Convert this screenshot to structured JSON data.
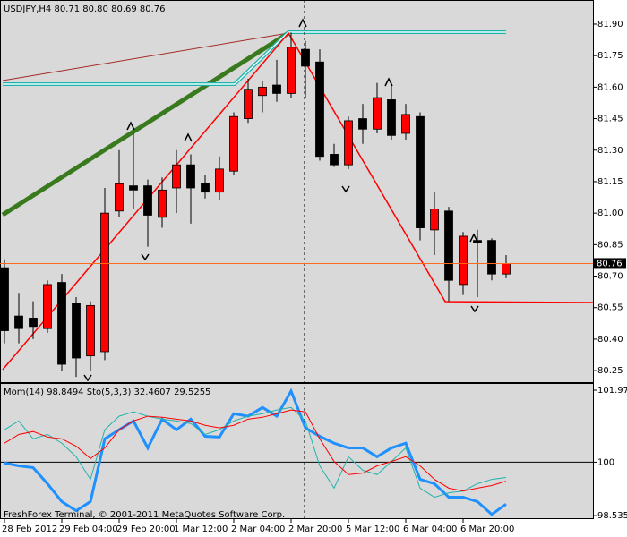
{
  "chart_data": [
    {
      "type": "candlestick",
      "title": "USDJPY,H4  80.71 80.80 80.69 80.76",
      "copyright": "FreshForex Terminal, © 2001-2011 MetaQuotes Software Corp.",
      "categories": [
        "28 Feb 2012",
        null,
        null,
        null,
        "29 Feb 04:00",
        null,
        null,
        null,
        "29 Feb 20:00",
        null,
        null,
        null,
        "1 Mar 12:00",
        null,
        null,
        null,
        "2 Mar 04:00",
        null,
        null,
        null,
        "2 Mar 20:00",
        null,
        null,
        null,
        "5 Mar 12:00",
        null,
        null,
        null,
        "6 Mar 04:00",
        null,
        null,
        null,
        "6 Mar 20:00",
        null,
        null,
        null
      ],
      "open": [
        80.74,
        80.51,
        80.5,
        80.45,
        80.67,
        80.57,
        80.32,
        80.34,
        81.01,
        81.13,
        81.13,
        80.98,
        81.12,
        81.23,
        81.14,
        81.1,
        81.2,
        81.45,
        81.56,
        81.61,
        81.57,
        81.78,
        81.72,
        81.28,
        81.23,
        81.45,
        81.4,
        81.54,
        81.38,
        81.46,
        80.92,
        81.01,
        80.66,
        80.87,
        80.87,
        80.71
      ],
      "high": [
        80.78,
        80.62,
        80.58,
        80.68,
        80.71,
        80.6,
        80.58,
        81.12,
        81.3,
        81.38,
        81.16,
        81.17,
        81.3,
        81.28,
        81.18,
        81.27,
        81.48,
        81.64,
        81.63,
        81.73,
        81.86,
        81.82,
        81.78,
        81.33,
        81.46,
        81.52,
        81.62,
        81.62,
        81.52,
        81.48,
        81.1,
        81.03,
        80.91,
        80.92,
        80.88,
        80.8
      ],
      "low": [
        80.38,
        80.38,
        80.4,
        80.43,
        80.25,
        80.22,
        80.25,
        80.3,
        80.98,
        81.02,
        80.84,
        80.93,
        81.0,
        80.95,
        81.07,
        81.06,
        81.18,
        81.43,
        81.48,
        81.53,
        81.55,
        81.55,
        81.25,
        81.22,
        81.21,
        81.33,
        81.38,
        81.35,
        81.35,
        80.87,
        80.8,
        80.58,
        80.61,
        80.6,
        80.68,
        80.69
      ],
      "close": [
        80.44,
        80.45,
        80.46,
        80.66,
        80.28,
        80.31,
        80.56,
        81.0,
        81.14,
        81.11,
        80.99,
        81.11,
        81.23,
        81.12,
        81.1,
        81.21,
        81.46,
        81.59,
        81.6,
        81.57,
        81.79,
        81.7,
        81.27,
        81.23,
        81.44,
        81.4,
        81.55,
        81.37,
        81.47,
        80.93,
        81.02,
        80.68,
        80.89,
        80.86,
        80.71,
        80.76
      ],
      "up_color": "#ff0000",
      "down_color": "#000000",
      "price_line_color": "#ff6a1a",
      "ylim": [
        80.195,
        82.015
      ],
      "yticks": [
        {
          "value": 81.9,
          "label": "81.90"
        },
        81.75,
        {
          "value": 81.6,
          "label": "81.60"
        },
        81.45,
        {
          "value": 81.3,
          "label": "81.30"
        },
        81.15,
        {
          "value": 81.0,
          "label": "81.00"
        },
        80.85,
        {
          "value": 80.7,
          "label": "80.70"
        },
        80.55,
        {
          "value": 80.4,
          "label": "80.40"
        },
        80.25
      ]
    },
    {
      "type": "line",
      "title": "Mom(14) 98.8494  Sto(5,3,3) 32.4607 29.5255",
      "level": 100,
      "series": [
        {
          "color": "#1e90ff",
          "values": [
            99.98,
            99.9,
            99.85,
            99.41,
            98.92,
            98.67,
            98.92,
            100.64,
            100.89,
            101.13,
            100.39,
            101.18,
            100.89,
            101.18,
            100.71,
            100.69,
            101.33,
            101.26,
            101.5,
            101.26,
            101.95,
            100.94,
            100.71,
            100.52,
            100.39,
            100.39,
            100.15,
            100.39,
            100.52,
            99.53,
            99.41,
            99.04,
            99.04,
            98.92,
            98.57,
            98.85
          ]
        },
        {
          "color": "#20b2aa",
          "values": [
            100.89,
            101.13,
            100.64,
            100.76,
            100.52,
            100.15,
            99.53,
            100.89,
            101.26,
            101.38,
            101.26,
            101.18,
            101.13,
            101.06,
            100.76,
            100.89,
            101.13,
            101.26,
            101.33,
            101.43,
            101.5,
            101.13,
            99.9,
            99.29,
            100.15,
            99.78,
            99.66,
            100.02,
            100.39,
            99.29,
            99.04,
            99.16,
            99.21,
            99.41,
            99.53,
            99.58
          ]
        },
        {
          "color": "#ff0000",
          "values": [
            100.52,
            100.76,
            100.84,
            100.69,
            100.64,
            100.44,
            100.1,
            100.39,
            100.89,
            101.13,
            101.26,
            101.23,
            101.18,
            101.13,
            101.01,
            100.94,
            101.01,
            101.18,
            101.23,
            101.33,
            101.43,
            101.38,
            100.64,
            100.02,
            99.66,
            99.7,
            99.9,
            100.02,
            100.15,
            99.9,
            99.53,
            99.29,
            99.21,
            99.29,
            99.36,
            99.48
          ]
        }
      ],
      "ylim": [
        98.44,
        102.17
      ],
      "yticks": [
        101.9739,
        100,
        98.5355
      ]
    }
  ]
}
